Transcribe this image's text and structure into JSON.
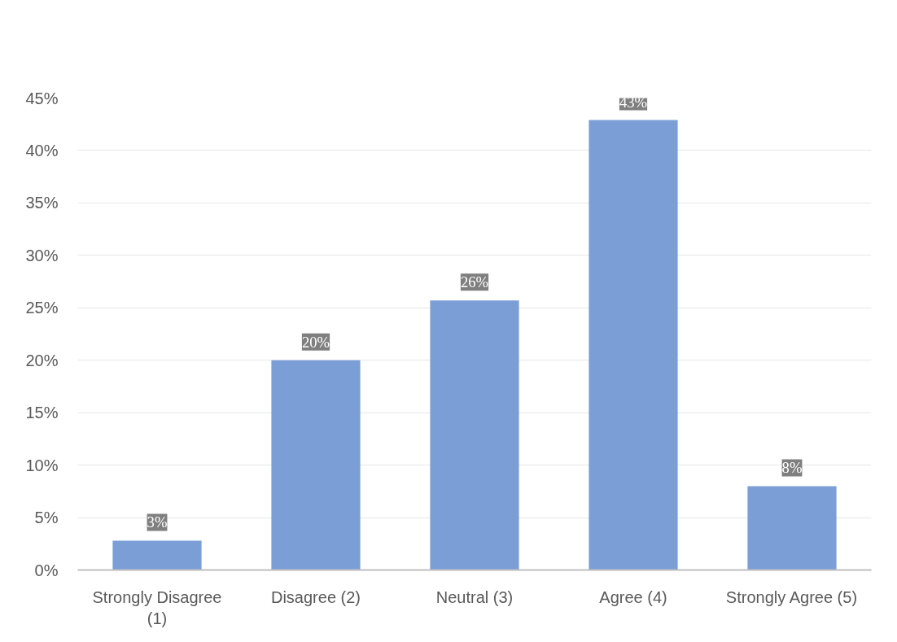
{
  "chart_data": {
    "type": "bar",
    "categories": [
      "Strongly Disagree (1)",
      "Disagree (2)",
      "Neutral (3)",
      "Agree (4)",
      "Strongly Agree (5)"
    ],
    "values": [
      2.8,
      20,
      25.7,
      42.9,
      8
    ],
    "value_labels": [
      "3%",
      "20%",
      "26%",
      "43%",
      "8%"
    ],
    "color": "#7b9ed6",
    "ylim": [
      0,
      45
    ],
    "yticks": [
      {
        "value": 0,
        "label": "0%"
      },
      {
        "value": 5,
        "label": "5%"
      },
      {
        "value": 10,
        "label": "10%"
      },
      {
        "value": 15,
        "label": "15%"
      },
      {
        "value": 20,
        "label": "20%"
      },
      {
        "value": 25,
        "label": "25%"
      },
      {
        "value": 30,
        "label": "30%"
      },
      {
        "value": 35,
        "label": "35%"
      },
      {
        "value": 40,
        "label": "40%"
      },
      {
        "value": 45,
        "label": "45%"
      }
    ],
    "grid": "y"
  }
}
